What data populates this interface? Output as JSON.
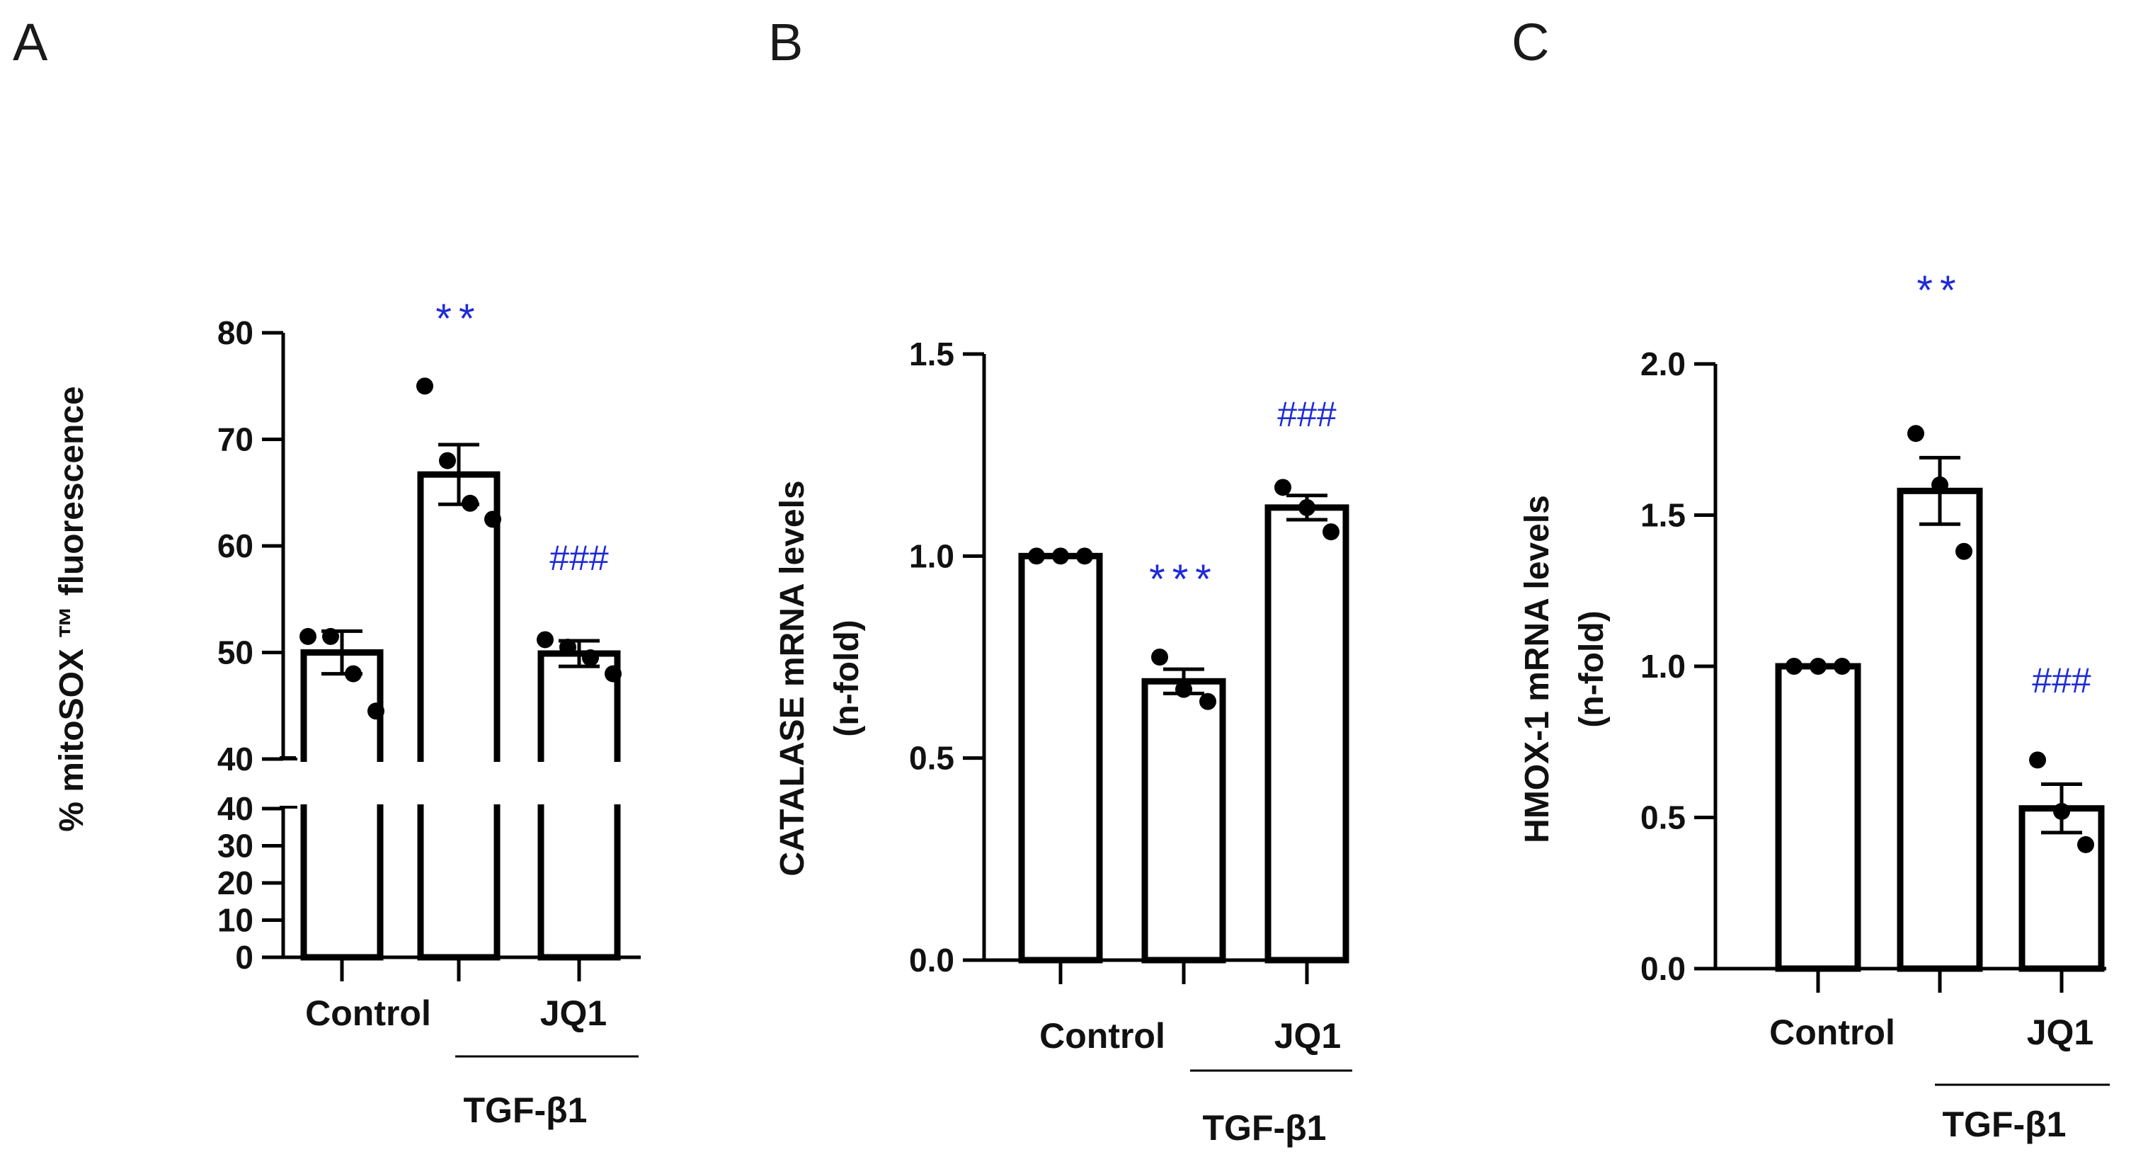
{
  "chart_data": [
    {
      "panel": "A",
      "type": "bar",
      "categories": [
        "Control",
        "TGF-β1",
        "JQ1"
      ],
      "values": [
        50.0,
        66.7,
        49.9
      ],
      "sem": [
        2.0,
        2.8,
        1.2
      ],
      "points": [
        [
          51.5,
          51.5,
          48.0,
          44.5
        ],
        [
          75.0,
          68.0,
          64.0,
          62.5
        ],
        [
          51.2,
          50.5,
          49.5,
          48.0
        ]
      ],
      "ylabel": "% mitoSOX ™ fluorescence",
      "ylim": [
        0,
        80
      ],
      "axis_break": {
        "lower": [
          0,
          40
        ],
        "upper": [
          40,
          80
        ]
      },
      "yticks_lower": [
        "0",
        "10",
        "20",
        "30",
        "40"
      ],
      "yticks_upper": [
        "40",
        "50",
        "60",
        "70",
        "80"
      ],
      "significance": [
        "",
        "**",
        "###"
      ]
    },
    {
      "panel": "B",
      "type": "bar",
      "categories": [
        "Control",
        "TGF-β1",
        "JQ1"
      ],
      "values": [
        1.0,
        0.69,
        1.12
      ],
      "sem": [
        0.0,
        0.03,
        0.03
      ],
      "points": [
        [
          1.0,
          1.0,
          1.0
        ],
        [
          0.75,
          0.67,
          0.64
        ],
        [
          1.17,
          1.12,
          1.06
        ]
      ],
      "ylabel": "CATALASE mRNA levels",
      "ylabel2": "(n-fold)",
      "ylim": [
        0,
        1.5
      ],
      "yticks": [
        "0.0",
        "0.5",
        "1.0",
        "1.5"
      ],
      "significance": [
        "",
        "***",
        "###"
      ]
    },
    {
      "panel": "C",
      "type": "bar",
      "categories": [
        "Control",
        "TGF-β1",
        "JQ1"
      ],
      "values": [
        1.0,
        1.58,
        0.53
      ],
      "sem": [
        0.0,
        0.11,
        0.08
      ],
      "points": [
        [
          1.0,
          1.0,
          1.0
        ],
        [
          1.77,
          1.6,
          1.38
        ],
        [
          0.69,
          0.52,
          0.41
        ]
      ],
      "ylabel": "HMOX-1 mRNA levels",
      "ylabel2": "(n-fold)",
      "ylim": [
        0,
        2.0
      ],
      "yticks": [
        "0.0",
        "0.5",
        "1.0",
        "1.5",
        "2.0"
      ],
      "significance": [
        "",
        "**",
        "###"
      ]
    }
  ],
  "labels": {
    "panel_a": "A",
    "panel_b": "B",
    "panel_c": "C",
    "control": "Control",
    "jq1": "JQ1",
    "tgf": "TGF-β1"
  },
  "colors": {
    "bar_fill": "#ffffff",
    "bar_stroke": "#000000",
    "point": "#000000",
    "significance": "#1f2bd6"
  }
}
